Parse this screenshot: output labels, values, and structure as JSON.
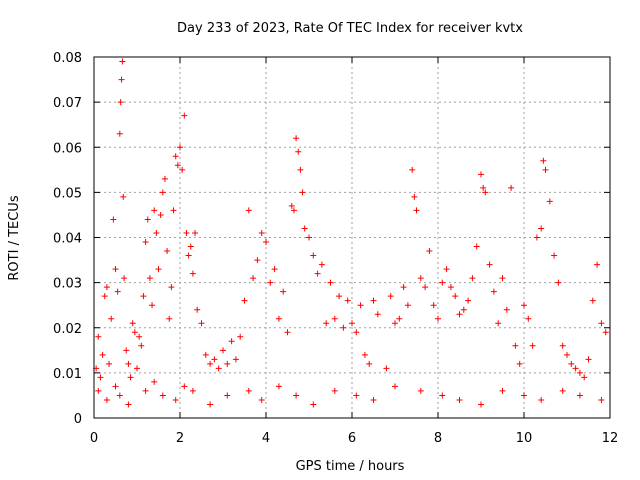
{
  "chart_data": {
    "type": "scatter",
    "title": "Day 233 of 2023, Rate Of TEC Index for receiver kvtx",
    "xlabel": "GPS time / hours",
    "ylabel": "ROTI / TECUs",
    "xlim": [
      0,
      12
    ],
    "ylim": [
      0,
      0.08
    ],
    "grid": true,
    "marker": "+",
    "color": "#ff0000",
    "xticks": [
      0,
      2,
      4,
      6,
      8,
      10,
      12
    ],
    "xtick_labels": [
      "0",
      "2",
      "4",
      "6",
      "8",
      "10",
      "12"
    ],
    "yticks": [
      0,
      0.01,
      0.02,
      0.03,
      0.04,
      0.05,
      0.06,
      0.07,
      0.08
    ],
    "ytick_labels": [
      "0",
      "0.01",
      "0.02",
      "0.03",
      "0.04",
      "0.05",
      "0.06",
      "0.07",
      "0.08"
    ],
    "series": [
      {
        "name": "ROTI",
        "x": [
          0.05,
          0.1,
          0.15,
          0.2,
          0.25,
          0.3,
          0.35,
          0.4,
          0.45,
          0.5,
          0.55,
          0.6,
          0.62,
          0.64,
          0.66,
          0.68,
          0.7,
          0.75,
          0.8,
          0.85,
          0.9,
          0.95,
          1.0,
          1.05,
          1.1,
          1.15,
          1.2,
          1.25,
          1.3,
          1.35,
          1.4,
          1.45,
          1.5,
          1.55,
          1.6,
          1.65,
          1.7,
          1.75,
          1.8,
          1.85,
          1.9,
          1.95,
          2.0,
          2.05,
          2.1,
          2.15,
          2.2,
          2.25,
          2.3,
          2.35,
          2.4,
          2.5,
          2.6,
          2.7,
          2.8,
          2.9,
          3.0,
          3.1,
          3.2,
          3.3,
          3.4,
          3.5,
          3.6,
          3.7,
          3.8,
          3.9,
          4.0,
          4.1,
          4.2,
          4.3,
          4.4,
          4.5,
          4.6,
          4.65,
          4.7,
          4.75,
          4.8,
          4.85,
          4.9,
          5.0,
          5.1,
          5.2,
          5.3,
          5.4,
          5.5,
          5.6,
          5.7,
          5.8,
          5.9,
          6.0,
          6.1,
          6.2,
          6.3,
          6.4,
          6.5,
          6.6,
          6.8,
          6.9,
          7.0,
          7.1,
          7.2,
          7.3,
          7.4,
          7.45,
          7.5,
          7.6,
          7.7,
          7.8,
          7.9,
          8.0,
          8.1,
          8.2,
          8.3,
          8.4,
          8.5,
          8.6,
          8.7,
          8.8,
          8.9,
          9.0,
          9.05,
          9.1,
          9.2,
          9.3,
          9.4,
          9.5,
          9.6,
          9.7,
          9.8,
          9.9,
          10.0,
          10.1,
          10.2,
          10.3,
          10.4,
          10.45,
          10.5,
          10.6,
          10.7,
          10.8,
          10.9,
          11.0,
          11.1,
          11.2,
          11.3,
          11.4,
          11.5,
          11.6,
          11.7,
          11.8,
          11.9,
          0.1,
          0.3,
          0.5,
          0.6,
          0.8,
          1.2,
          1.4,
          1.6,
          1.9,
          2.1,
          2.3,
          2.7,
          3.1,
          3.6,
          3.9,
          4.3,
          4.7,
          5.1,
          5.6,
          6.1,
          6.5,
          7.0,
          7.6,
          8.1,
          8.5,
          9.0,
          9.5,
          10.0,
          10.4,
          10.9,
          11.3,
          11.8
        ],
        "y": [
          0.011,
          0.018,
          0.009,
          0.014,
          0.027,
          0.029,
          0.012,
          0.022,
          0.044,
          0.033,
          0.028,
          0.063,
          0.07,
          0.075,
          0.079,
          0.049,
          0.031,
          0.015,
          0.012,
          0.009,
          0.021,
          0.019,
          0.011,
          0.018,
          0.016,
          0.027,
          0.039,
          0.044,
          0.031,
          0.025,
          0.046,
          0.041,
          0.033,
          0.045,
          0.05,
          0.053,
          0.037,
          0.022,
          0.029,
          0.046,
          0.058,
          0.056,
          0.06,
          0.055,
          0.067,
          0.041,
          0.036,
          0.038,
          0.032,
          0.041,
          0.024,
          0.021,
          0.014,
          0.012,
          0.013,
          0.011,
          0.015,
          0.012,
          0.017,
          0.013,
          0.018,
          0.026,
          0.046,
          0.031,
          0.035,
          0.041,
          0.039,
          0.03,
          0.033,
          0.022,
          0.028,
          0.019,
          0.047,
          0.046,
          0.062,
          0.059,
          0.055,
          0.05,
          0.042,
          0.04,
          0.036,
          0.032,
          0.034,
          0.021,
          0.03,
          0.022,
          0.027,
          0.02,
          0.026,
          0.021,
          0.019,
          0.025,
          0.014,
          0.012,
          0.026,
          0.023,
          0.011,
          0.027,
          0.021,
          0.022,
          0.029,
          0.025,
          0.055,
          0.049,
          0.046,
          0.031,
          0.029,
          0.037,
          0.025,
          0.022,
          0.03,
          0.033,
          0.029,
          0.027,
          0.023,
          0.024,
          0.026,
          0.031,
          0.038,
          0.054,
          0.051,
          0.05,
          0.034,
          0.028,
          0.021,
          0.031,
          0.024,
          0.051,
          0.016,
          0.012,
          0.025,
          0.022,
          0.016,
          0.04,
          0.042,
          0.057,
          0.055,
          0.048,
          0.036,
          0.03,
          0.016,
          0.014,
          0.012,
          0.011,
          0.01,
          0.009,
          0.013,
          0.026,
          0.034,
          0.021,
          0.019,
          0.006,
          0.004,
          0.007,
          0.005,
          0.003,
          0.006,
          0.008,
          0.005,
          0.004,
          0.007,
          0.006,
          0.003,
          0.005,
          0.006,
          0.004,
          0.007,
          0.005,
          0.003,
          0.006,
          0.005,
          0.004,
          0.007,
          0.006,
          0.005,
          0.004,
          0.003,
          0.006,
          0.005,
          0.004,
          0.006,
          0.005,
          0.004
        ]
      }
    ]
  }
}
